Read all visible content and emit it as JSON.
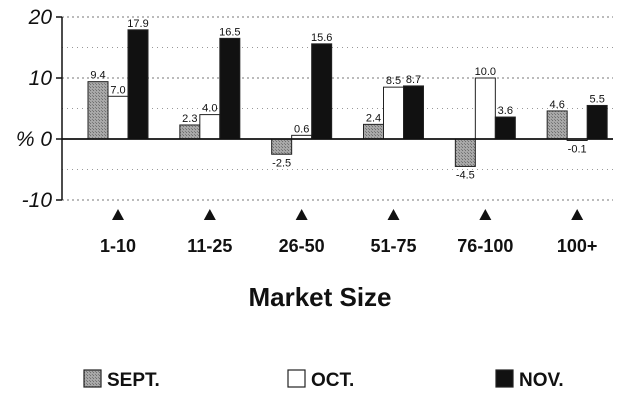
{
  "chart_data": {
    "type": "bar",
    "categories": [
      "1-10",
      "11-25",
      "26-50",
      "51-75",
      "76-100",
      "100+"
    ],
    "series": [
      {
        "name": "SEPT.",
        "values": [
          9.4,
          2.3,
          -2.5,
          2.4,
          -4.5,
          4.6
        ],
        "color": "#9a9a9a"
      },
      {
        "name": "OCT.",
        "values": [
          7.0,
          4.0,
          0.6,
          8.5,
          10.0,
          -0.1
        ],
        "color": "#ffffff"
      },
      {
        "name": "NOV.",
        "values": [
          17.9,
          16.5,
          15.6,
          8.7,
          3.6,
          5.5
        ],
        "color": "#111111"
      }
    ],
    "data_labels": [
      [
        "9.4",
        "2.3",
        "-2.5",
        "2.4",
        "-4.5",
        "4.6"
      ],
      [
        "7.0",
        "4.0",
        "0.6",
        "8.5",
        "10.0",
        "-0.1"
      ],
      [
        "17.9",
        "16.5",
        "15.6",
        "8.7",
        "3.6",
        "5.5"
      ]
    ],
    "yticks": [
      "20",
      "10",
      "% 0",
      "-10"
    ],
    "ytick_values": [
      20,
      10,
      0,
      -10
    ],
    "ylim": [
      -10,
      20
    ],
    "xlabel": "Market Size",
    "ylabel": "",
    "title": "",
    "grid": "dotted horizontal",
    "legend_position": "bottom"
  }
}
